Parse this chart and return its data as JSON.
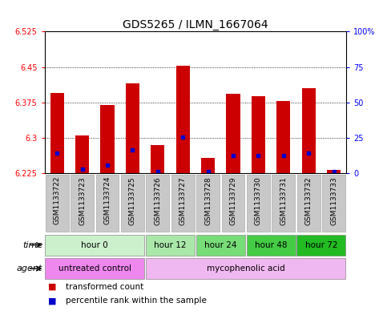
{
  "title": "GDS5265 / ILMN_1667064",
  "samples": [
    "GSM1133722",
    "GSM1133723",
    "GSM1133724",
    "GSM1133725",
    "GSM1133726",
    "GSM1133727",
    "GSM1133728",
    "GSM1133729",
    "GSM1133730",
    "GSM1133731",
    "GSM1133732",
    "GSM1133733"
  ],
  "red_tops": [
    6.395,
    6.305,
    6.37,
    6.415,
    6.285,
    6.453,
    6.257,
    6.393,
    6.388,
    6.378,
    6.405,
    6.232
  ],
  "blue_vals": [
    6.268,
    6.233,
    6.242,
    6.275,
    6.228,
    6.302,
    6.228,
    6.262,
    6.262,
    6.262,
    6.268,
    6.228
  ],
  "base": 6.225,
  "ylim_left": [
    6.225,
    6.525
  ],
  "ylim_right": [
    0,
    100
  ],
  "yticks_left": [
    6.225,
    6.3,
    6.375,
    6.45,
    6.525
  ],
  "yticks_right": [
    0,
    25,
    50,
    75,
    100
  ],
  "ytick_labels_left": [
    "6.225",
    "6.3",
    "6.375",
    "6.45",
    "6.525"
  ],
  "ytick_labels_right": [
    "0",
    "25",
    "50",
    "75",
    "100%"
  ],
  "time_groups": [
    {
      "label": "hour 0",
      "start": 0,
      "end": 4,
      "color": "#ccf0cc"
    },
    {
      "label": "hour 12",
      "start": 4,
      "end": 6,
      "color": "#aae8aa"
    },
    {
      "label": "hour 24",
      "start": 6,
      "end": 8,
      "color": "#77dd77"
    },
    {
      "label": "hour 48",
      "start": 8,
      "end": 10,
      "color": "#44cc44"
    },
    {
      "label": "hour 72",
      "start": 10,
      "end": 12,
      "color": "#22bb22"
    }
  ],
  "agent_groups": [
    {
      "label": "untreated control",
      "start": 0,
      "end": 4,
      "color": "#ee88ee"
    },
    {
      "label": "mycophenolic acid",
      "start": 4,
      "end": 12,
      "color": "#f0b8f0"
    }
  ],
  "legend_items": [
    {
      "color": "#cc0000",
      "label": "transformed count"
    },
    {
      "color": "#0000cc",
      "label": "percentile rank within the sample"
    }
  ],
  "bar_width": 0.55,
  "bar_color": "#cc0000",
  "blue_color": "#0000cc",
  "bg_color": "#ffffff",
  "title_fontsize": 10,
  "tick_fontsize": 7,
  "row_label_fontsize": 8,
  "cell_label_fontsize": 7.5,
  "legend_fontsize": 7.5
}
